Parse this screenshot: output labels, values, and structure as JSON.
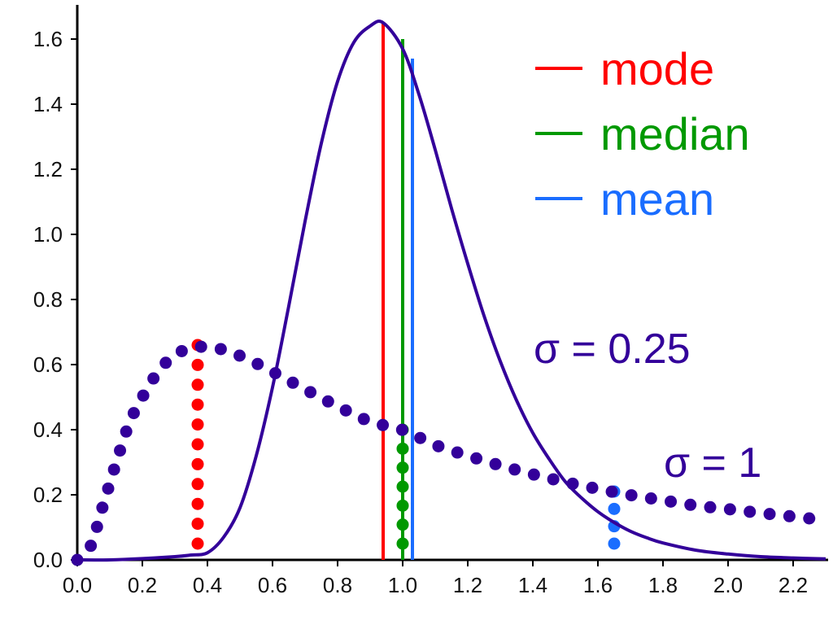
{
  "chart_data": {
    "type": "line",
    "title": "",
    "xlabel": "",
    "ylabel": "",
    "xlim": [
      0.0,
      2.3
    ],
    "ylim": [
      0.0,
      1.65
    ],
    "grid": false,
    "x_ticks": [
      "0.0",
      "0.2",
      "0.4",
      "0.6",
      "0.8",
      "1.0",
      "1.2",
      "1.4",
      "1.6",
      "1.8",
      "2.0",
      "2.2"
    ],
    "y_ticks": [
      "0.0",
      "0.2",
      "0.4",
      "0.6",
      "0.8",
      "1.0",
      "1.2",
      "1.4",
      "1.6"
    ],
    "legend": {
      "placement": "top-right",
      "entries": [
        {
          "label": "mode",
          "color": "#ff0000"
        },
        {
          "label": "median",
          "color": "#009900"
        },
        {
          "label": "mean",
          "color": "#1a6dff"
        }
      ]
    },
    "curve_color": "#33009a",
    "series": [
      {
        "name": "σ = 0.25",
        "style": "solid",
        "x": [
          0.0,
          0.1,
          0.2,
          0.3,
          0.35,
          0.4,
          0.45,
          0.5,
          0.55,
          0.6,
          0.65,
          0.7,
          0.75,
          0.8,
          0.85,
          0.9,
          0.94,
          1.0,
          1.05,
          1.1,
          1.15,
          1.2,
          1.25,
          1.3,
          1.35,
          1.4,
          1.45,
          1.5,
          1.55,
          1.6,
          1.65,
          1.7,
          1.75,
          1.8,
          1.9,
          2.0,
          2.1,
          2.2,
          2.3
        ],
        "y": [
          0.0,
          0.0,
          0.004,
          0.01,
          0.015,
          0.022,
          0.07,
          0.16,
          0.32,
          0.53,
          0.78,
          1.04,
          1.28,
          1.47,
          1.59,
          1.64,
          1.65,
          1.57,
          1.43,
          1.26,
          1.08,
          0.91,
          0.75,
          0.61,
          0.49,
          0.39,
          0.31,
          0.24,
          0.19,
          0.148,
          0.115,
          0.088,
          0.068,
          0.052,
          0.03,
          0.018,
          0.01,
          0.006,
          0.003
        ]
      },
      {
        "name": "σ = 1",
        "style": "dotted",
        "x": [
          0.0,
          0.04,
          0.08,
          0.12,
          0.16,
          0.2,
          0.25,
          0.3,
          0.35,
          0.4,
          0.45,
          0.5,
          0.55,
          0.6,
          0.65,
          0.7,
          0.8,
          0.9,
          1.0,
          1.1,
          1.2,
          1.3,
          1.4,
          1.5,
          1.6,
          1.7,
          1.8,
          1.9,
          2.0,
          2.1,
          2.2,
          2.3
        ],
        "y": [
          0.0,
          0.04,
          0.17,
          0.3,
          0.42,
          0.5,
          0.58,
          0.63,
          0.65,
          0.655,
          0.645,
          0.627,
          0.604,
          0.578,
          0.551,
          0.524,
          0.472,
          0.425,
          0.399,
          0.353,
          0.32,
          0.29,
          0.263,
          0.239,
          0.218,
          0.199,
          0.183,
          0.167,
          0.156,
          0.144,
          0.133,
          0.122
        ]
      }
    ],
    "markers": [
      {
        "label": "mode",
        "sigma": "σ = 0.25",
        "x": 0.94,
        "y_top": 1.65,
        "style": "solid",
        "color": "#ff0000"
      },
      {
        "label": "median",
        "sigma": "σ = 0.25",
        "x": 1.0,
        "y_top": 1.6,
        "style": "solid",
        "color": "#009900"
      },
      {
        "label": "mean",
        "sigma": "σ = 0.25",
        "x": 1.03,
        "y_top": 1.54,
        "style": "solid",
        "color": "#1a6dff"
      },
      {
        "label": "mode",
        "sigma": "σ = 1",
        "x": 0.37,
        "y_top": 0.66,
        "style": "dotted",
        "color": "#ff0000"
      },
      {
        "label": "median",
        "sigma": "σ = 1",
        "x": 1.0,
        "y_top": 0.4,
        "style": "dotted",
        "color": "#009900"
      },
      {
        "label": "mean",
        "sigma": "σ = 1",
        "x": 1.65,
        "y_top": 0.21,
        "style": "dotted",
        "color": "#1a6dff"
      }
    ],
    "annotations": [
      {
        "text": "σ = 0.25"
      },
      {
        "text": "σ = 1"
      }
    ]
  }
}
